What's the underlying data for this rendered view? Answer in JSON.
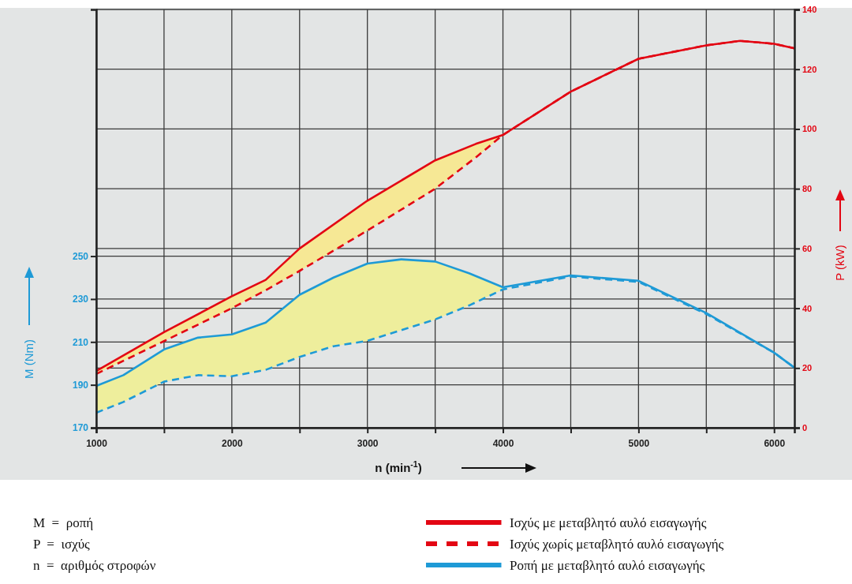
{
  "chart_data": {
    "type": "line",
    "xlabel": "n (min$^{-1}$)",
    "ylabel": "M (Nm)",
    "y2label": "P (kW)",
    "xlim": [
      1000,
      6150
    ],
    "xticks": [
      1000,
      {
        "value": 1500,
        "label": null
      },
      2000,
      {
        "value": 2500,
        "label": null
      },
      3000,
      {
        "value": 3500,
        "label": null
      },
      4000,
      {
        "value": 4500,
        "label": null
      },
      5000,
      {
        "value": 5500,
        "label": null
      },
      6000
    ],
    "ylim": [
      170,
      365
    ],
    "yticks": [
      170,
      190,
      210,
      230,
      250
    ],
    "y2lim": [
      0,
      140
    ],
    "y2ticks": [
      0,
      20,
      40,
      60,
      80,
      100,
      120,
      140
    ],
    "grid": true,
    "legend": "bottom",
    "series": [
      {
        "name": "Ισχύς με μεταβλητό αυλό εισαγωγής",
        "color": "#e30613",
        "axis": "y2",
        "line_style": "solid",
        "x": [
          1000,
          1500,
          2000,
          2250,
          2500,
          3000,
          3500,
          3800,
          4000,
          4500,
          5000,
          5500,
          5750,
          6000,
          6150
        ],
        "values": [
          19,
          32,
          44,
          49.5,
          60,
          76,
          89.5,
          95,
          98,
          112.5,
          123.5,
          128,
          129.5,
          128.5,
          127
        ]
      },
      {
        "name": "Ισχύς χωρίς μεταβλητό αυλό εισαγωγής",
        "color": "#e30613",
        "axis": "y2",
        "line_style": "dashed",
        "x": [
          1000,
          1500,
          2000,
          2250,
          2500,
          3000,
          3500,
          3800,
          4000,
          4500,
          5000,
          5500,
          5750,
          6000,
          6150
        ],
        "values": [
          18,
          29,
          40,
          46,
          52.5,
          66,
          80,
          90.5,
          98,
          112.5,
          123.5,
          128,
          129.5,
          128.5,
          127
        ],
        "lower": [
          18,
          29,
          40,
          46,
          52.5,
          66,
          80,
          90.5,
          98,
          null,
          null,
          null,
          null,
          null,
          null
        ],
        "upper": [
          19,
          32,
          44,
          49.5,
          60,
          76,
          89.5,
          95,
          98,
          null,
          null,
          null,
          null,
          null,
          null
        ]
      },
      {
        "name": "Ροπή με μεταβλητό αυλό εισαγωγής",
        "color": "#1e9ad6",
        "line_style": "solid",
        "x": [
          1000,
          1200,
          1500,
          1750,
          2000,
          2250,
          2500,
          2750,
          3000,
          3250,
          3500,
          3750,
          4000,
          4500,
          5000,
          5500,
          6000,
          6150
        ],
        "values": [
          189.5,
          194.5,
          206.5,
          212,
          213.5,
          219,
          232,
          240,
          246.5,
          248.5,
          247.5,
          242,
          235.5,
          241,
          238.5,
          223.5,
          205,
          198
        ]
      },
      {
        "color": "#1e9ad6",
        "line_style": "dashed",
        "x": [
          1000,
          1200,
          1500,
          1750,
          2000,
          2250,
          2500,
          2750,
          3000,
          3250,
          3500,
          3750,
          4000,
          4500,
          5000,
          5500,
          6000,
          6150
        ],
        "values": [
          177,
          182,
          191.5,
          194.5,
          194,
          197,
          203,
          208,
          210.5,
          215.5,
          220.5,
          227,
          234.5,
          240.5,
          238,
          223,
          205,
          198
        ],
        "lower": [
          177,
          182,
          191.5,
          194.5,
          194,
          197,
          203,
          208,
          210.5,
          215.5,
          220.5,
          227,
          234.5,
          null,
          null,
          null,
          null,
          null
        ],
        "upper": [
          189.5,
          194.5,
          206.5,
          212,
          213.5,
          219,
          232,
          240,
          246.5,
          248.5,
          247.5,
          242,
          235.5,
          null,
          null,
          null,
          null,
          null
        ]
      }
    ],
    "annotations": [
      "M  =  ροπή",
      "P  =  ισχύς",
      "n  =  αριθμός στροφών"
    ]
  }
}
